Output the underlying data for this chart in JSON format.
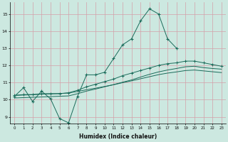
{
  "xlabel": "Humidex (Indice chaleur)",
  "bg_color": "#cce8e0",
  "grid_color": "#d4a0a8",
  "line_color": "#1a6b5a",
  "xlim": [
    -0.5,
    23.5
  ],
  "ylim": [
    8.6,
    15.7
  ],
  "xticks": [
    0,
    1,
    2,
    3,
    4,
    5,
    6,
    7,
    8,
    9,
    10,
    11,
    12,
    13,
    14,
    15,
    16,
    17,
    18,
    19,
    20,
    21,
    22,
    23
  ],
  "yticks": [
    9,
    10,
    11,
    12,
    13,
    14,
    15
  ],
  "line1_x": [
    0,
    1,
    2,
    3,
    4,
    5,
    6,
    7,
    8,
    9,
    10,
    11,
    12,
    13,
    14,
    15,
    16,
    17,
    18
  ],
  "line1_y": [
    10.2,
    10.7,
    9.9,
    10.5,
    10.05,
    8.9,
    8.65,
    10.2,
    11.45,
    11.45,
    11.6,
    12.4,
    13.2,
    13.55,
    14.6,
    15.3,
    15.0,
    13.55,
    13.0
  ],
  "line2_x": [
    0,
    1,
    2,
    3,
    4,
    5,
    6,
    7,
    8,
    9,
    10,
    11,
    12,
    13,
    14,
    15,
    16,
    17,
    18,
    19,
    20,
    21,
    22,
    23
  ],
  "line2_y": [
    10.25,
    10.3,
    10.3,
    10.35,
    10.35,
    10.35,
    10.4,
    10.55,
    10.75,
    10.9,
    11.05,
    11.2,
    11.4,
    11.55,
    11.7,
    11.85,
    12.0,
    12.1,
    12.15,
    12.25,
    12.25,
    12.15,
    12.05,
    11.95
  ],
  "line3_x": [
    0,
    1,
    2,
    3,
    4,
    5,
    6,
    7,
    8,
    9,
    10,
    11,
    12,
    13,
    14,
    15,
    16,
    17,
    18,
    19,
    20,
    21,
    22,
    23
  ],
  "line3_y": [
    10.1,
    10.12,
    10.14,
    10.16,
    10.18,
    10.2,
    10.22,
    10.35,
    10.5,
    10.62,
    10.75,
    10.88,
    11.02,
    11.15,
    11.32,
    11.48,
    11.62,
    11.73,
    11.82,
    11.92,
    11.95,
    11.87,
    11.82,
    11.78
  ],
  "line4_x": [
    0,
    1,
    2,
    3,
    4,
    5,
    6,
    7,
    8,
    9,
    10,
    11,
    12,
    13,
    14,
    15,
    16,
    17,
    18,
    19,
    20,
    21,
    22,
    23
  ],
  "line4_y": [
    10.25,
    10.27,
    10.29,
    10.32,
    10.34,
    10.36,
    10.39,
    10.48,
    10.58,
    10.67,
    10.77,
    10.87,
    10.99,
    11.1,
    11.22,
    11.34,
    11.46,
    11.55,
    11.62,
    11.7,
    11.73,
    11.68,
    11.63,
    11.58
  ]
}
